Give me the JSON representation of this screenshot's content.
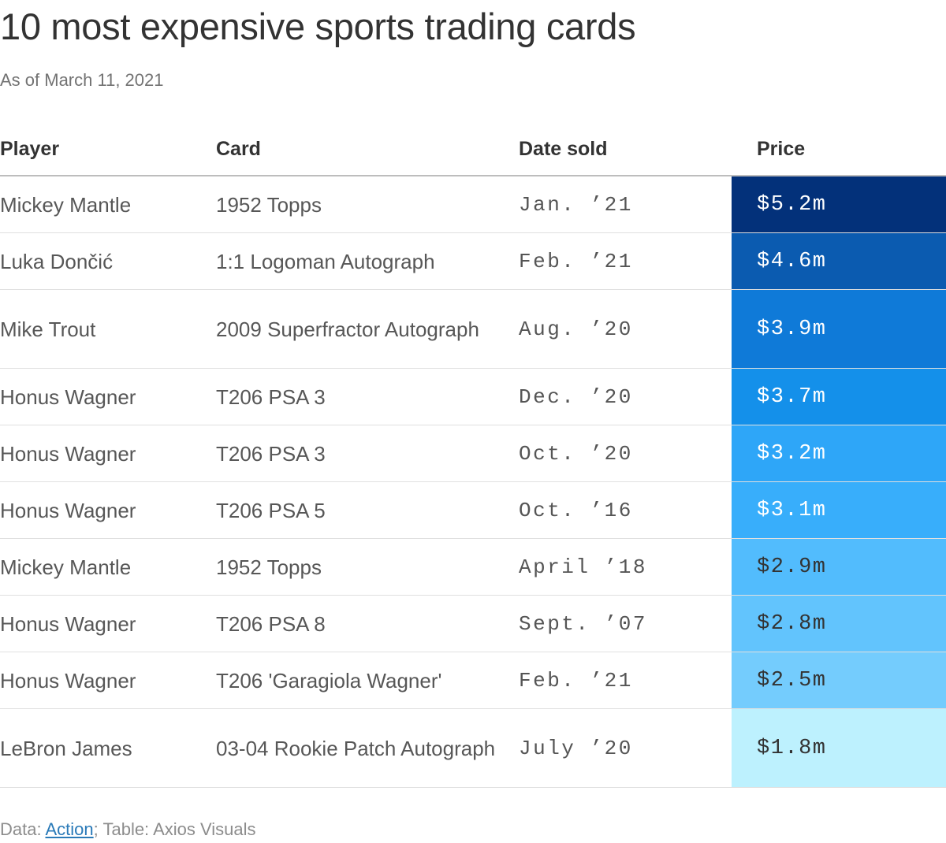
{
  "title": "10 most expensive sports trading cards",
  "subtitle": "As of March 11, 2021",
  "columns": {
    "player": "Player",
    "card": "Card",
    "date": "Date sold",
    "price": "Price"
  },
  "chart_data": {
    "type": "table",
    "title": "10 most expensive sports trading cards",
    "subtitle": "As of March 11, 2021",
    "columns": [
      "Player",
      "Card",
      "Date sold",
      "Price"
    ],
    "rows": [
      {
        "player": "Mickey Mantle",
        "card": "1952 Topps",
        "date": "Jan. ’21",
        "price": "$5.2m",
        "value": 5.2
      },
      {
        "player": "Luka Dončić",
        "card": "1:1 Logoman Autograph",
        "date": "Feb. ’21",
        "price": "$4.6m",
        "value": 4.6
      },
      {
        "player": "Mike Trout",
        "card": "2009 Superfractor Autograph",
        "date": "Aug. ’20",
        "price": "$3.9m",
        "value": 3.9
      },
      {
        "player": "Honus Wagner",
        "card": "T206 PSA 3",
        "date": "Dec. ’20",
        "price": "$3.7m",
        "value": 3.7
      },
      {
        "player": "Honus Wagner",
        "card": "T206 PSA 3",
        "date": "Oct. ’20",
        "price": "$3.2m",
        "value": 3.2
      },
      {
        "player": "Honus Wagner",
        "card": "T206 PSA 5",
        "date": "Oct. ’16",
        "price": "$3.1m",
        "value": 3.1
      },
      {
        "player": "Mickey Mantle",
        "card": "1952 Topps",
        "date": "April ’18",
        "price": "$2.9m",
        "value": 2.9
      },
      {
        "player": "Honus Wagner",
        "card": "T206 PSA 8",
        "date": "Sept. ’07",
        "price": "$2.8m",
        "value": 2.8
      },
      {
        "player": "Honus Wagner",
        "card": "T206 'Garagiola Wagner'",
        "date": "Feb. ’21",
        "price": "$2.5m",
        "value": 2.5
      },
      {
        "player": "LeBron James",
        "card": "03-04 Rookie Patch Autograph",
        "date": "July ’20",
        "price": "$1.8m",
        "value": 1.8
      }
    ],
    "price_colors": [
      "#03317a",
      "#0b5bb0",
      "#0f7ad8",
      "#1490ea",
      "#2ea6f8",
      "#38aefb",
      "#52bcfd",
      "#62c4fd",
      "#74ccfd",
      "#bdf1fe"
    ]
  },
  "footer": {
    "prefix": "Data: ",
    "source": "Action",
    "suffix": "; Table: Axios Visuals"
  }
}
